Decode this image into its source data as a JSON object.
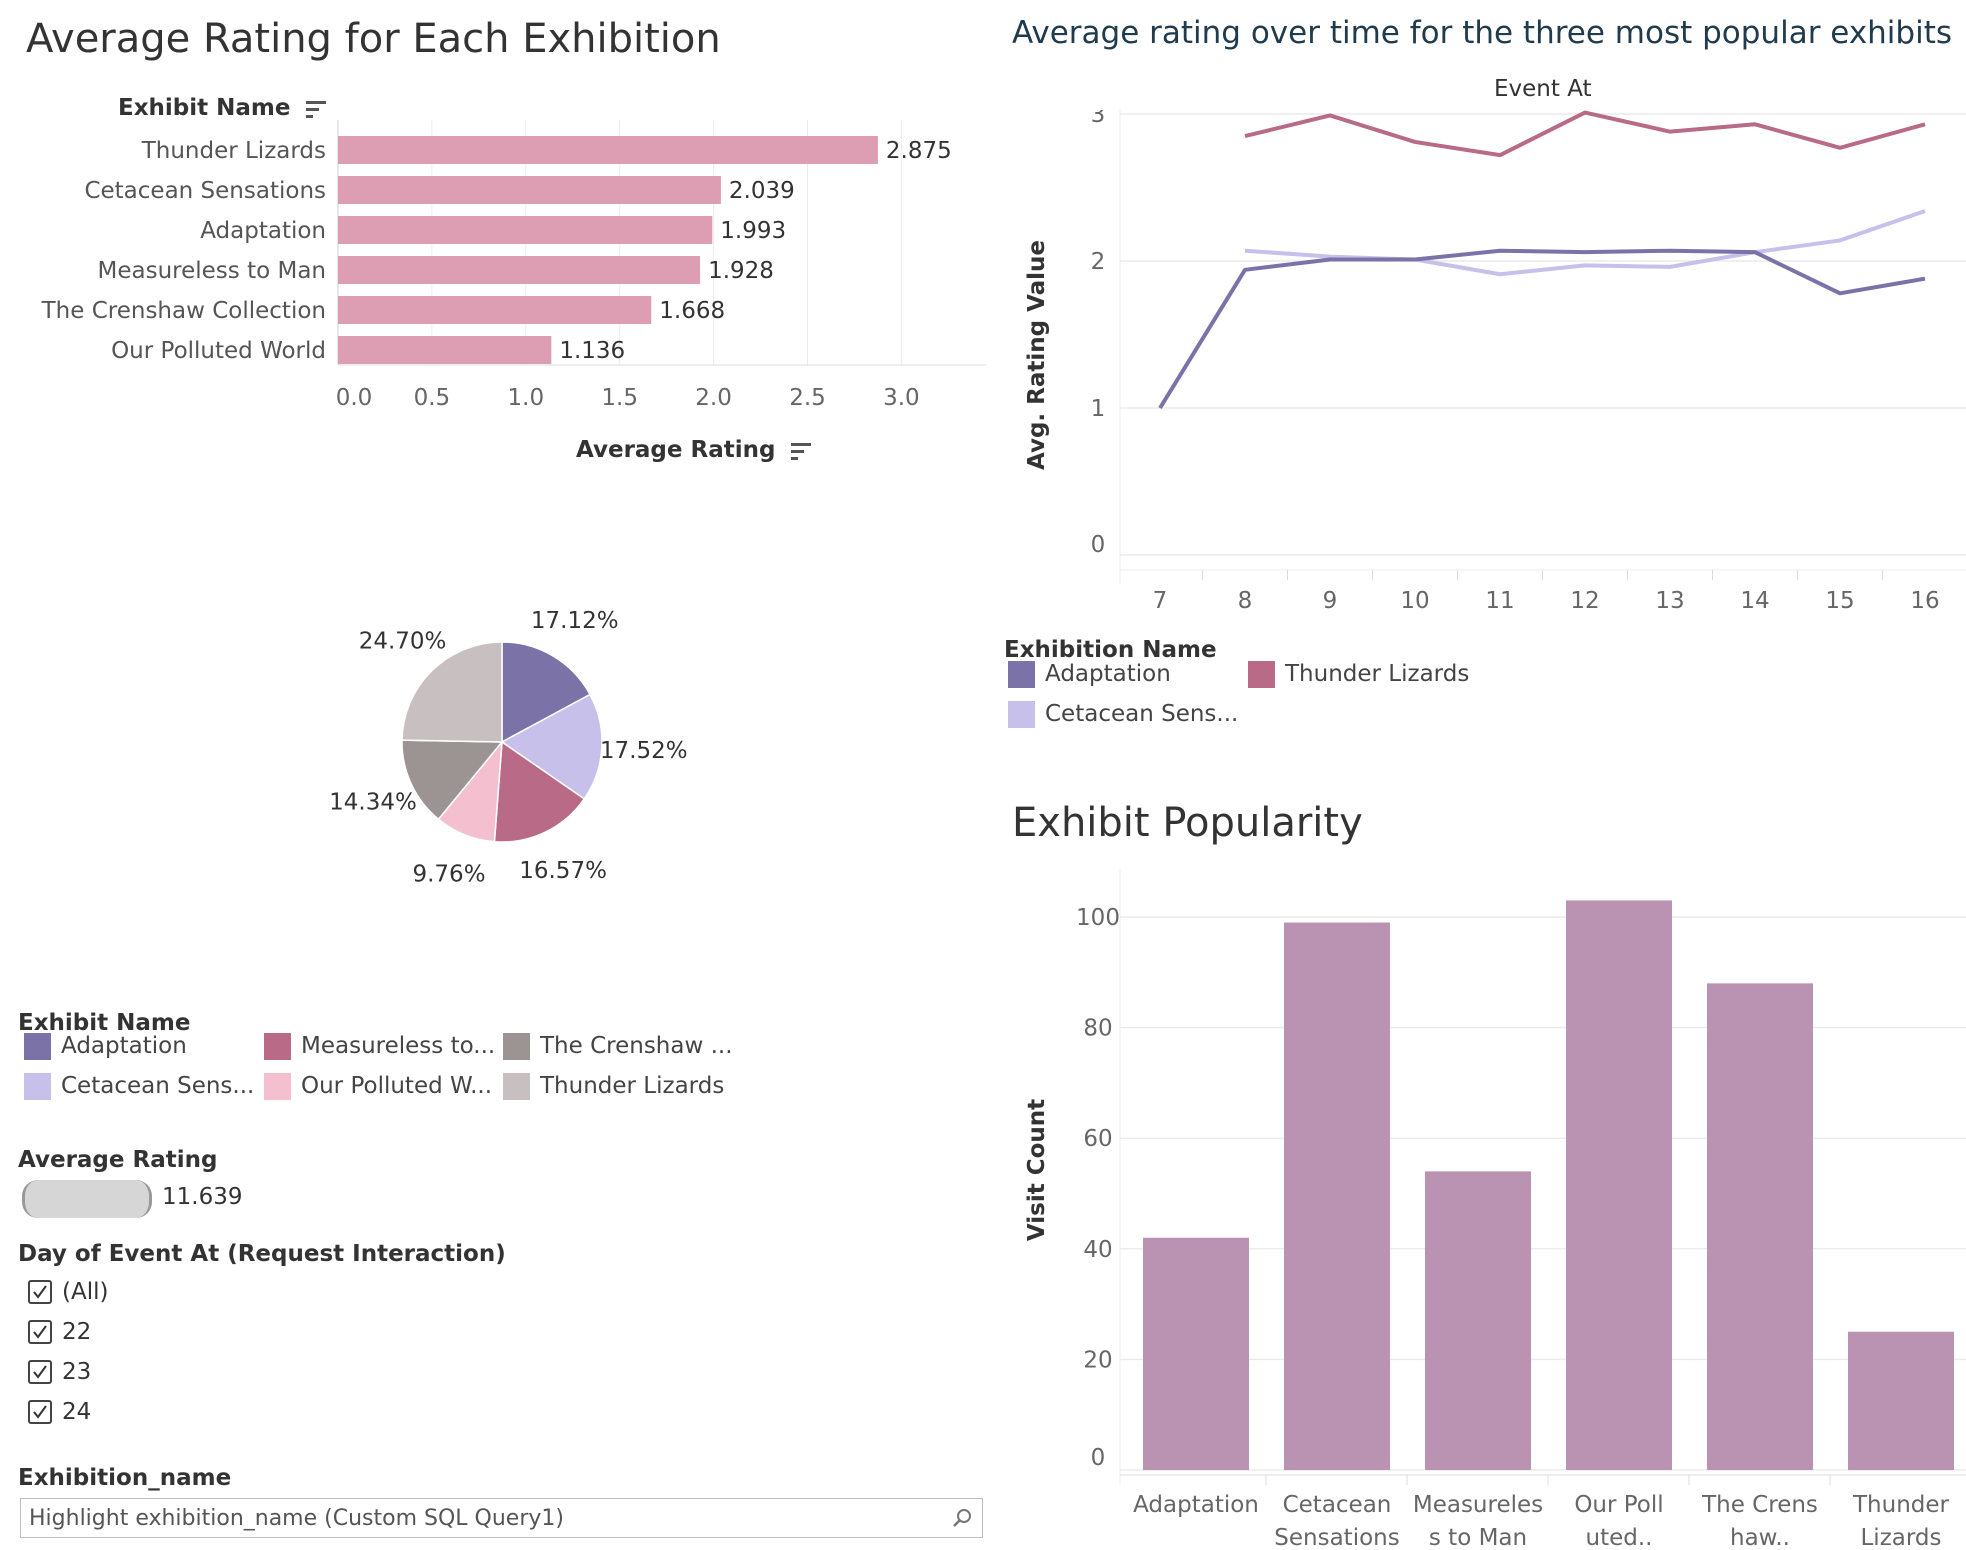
{
  "left": {
    "title": "Average Rating for Each Exhibition",
    "bar_header": "Exhibit Name",
    "bar_axis_label": "Average Rating",
    "pie_legend_title": "Exhibit Name",
    "pie_legend": [
      {
        "label": "Adaptation",
        "color": "#7b72a8"
      },
      {
        "label": "Measureless to...",
        "color": "#b86a86"
      },
      {
        "label": "The Crenshaw ...",
        "color": "#9c9493"
      },
      {
        "label": "Cetacean Sens...",
        "color": "#c6c0ea"
      },
      {
        "label": "Our Polluted W...",
        "color": "#f4c0d0"
      },
      {
        "label": "Thunder Lizards",
        "color": "#c7bfc0"
      }
    ],
    "size_legend_title": "Average Rating",
    "size_legend_value": "11.639",
    "day_filter_title": "Day of Event At (Request Interaction)",
    "day_filter_options": [
      "(All)",
      "22",
      "23",
      "24"
    ],
    "exhibition_filter_title": "Exhibition_name",
    "exhibition_filter_value": "Highlight exhibition_name (Custom SQL Query1)"
  },
  "right": {
    "line_title": "Average rating over time for the three most popular exhibits",
    "line_top_label": "Event At",
    "line_ylabel": "Avg. Rating Value",
    "line_legend_title": "Exhibition Name",
    "line_legend": [
      {
        "label": "Adaptation",
        "color": "#7b72a8"
      },
      {
        "label": "Thunder Lizards",
        "color": "#b86a86"
      },
      {
        "label": "Cetacean Sens...",
        "color": "#c6c0ea"
      }
    ],
    "bar_title": "Exhibit Popularity",
    "bar_ylabel": "Visit Count"
  },
  "chart_data": [
    {
      "type": "bar",
      "orientation": "horizontal",
      "title": "Average Rating for Each Exhibition",
      "xlabel": "Average Rating",
      "ylabel": "Exhibit Name",
      "categories": [
        "Thunder Lizards",
        "Cetacean Sensations",
        "Adaptation",
        "Measureless to Man",
        "The Crenshaw Collection",
        "Our Polluted World"
      ],
      "values": [
        2.875,
        2.039,
        1.993,
        1.928,
        1.668,
        1.136
      ],
      "value_labels": [
        "2.875",
        "2.039",
        "1.993",
        "1.928",
        "1.668",
        "1.136"
      ],
      "xlim": [
        0,
        3.45
      ],
      "xticks": [
        "0.0",
        "0.5",
        "1.0",
        "1.5",
        "2.0",
        "2.5",
        "3.0"
      ],
      "color": "#dd9db2"
    },
    {
      "type": "pie",
      "slices": [
        {
          "name": "Adaptation",
          "value": 17.12,
          "label": "17.12%",
          "color": "#7b72a8"
        },
        {
          "name": "Cetacean Sensations",
          "value": 17.52,
          "label": "17.52%",
          "color": "#c6c0ea"
        },
        {
          "name": "Measureless to Man",
          "value": 16.57,
          "label": "16.57%",
          "color": "#b86a86"
        },
        {
          "name": "Our Polluted World",
          "value": 9.76,
          "label": "9.76%",
          "color": "#f4c0d0"
        },
        {
          "name": "The Crenshaw Collection",
          "value": 14.34,
          "label": "14.34%",
          "color": "#9c9493"
        },
        {
          "name": "Thunder Lizards",
          "value": 24.7,
          "label": "24.70%",
          "color": "#c7bfc0"
        }
      ]
    },
    {
      "type": "line",
      "title": "Average rating over time for the three most popular exhibits",
      "xlabel": "Event At",
      "ylabel": "Avg. Rating Value",
      "x": [
        7,
        8,
        9,
        10,
        11,
        12,
        13,
        14,
        15,
        16
      ],
      "ylim": [
        0,
        3.2
      ],
      "yticks": [
        0,
        1,
        2,
        3
      ],
      "grid": true,
      "series": [
        {
          "name": "Thunder Lizards",
          "color": "#b86a86",
          "values": [
            null,
            2.85,
            2.99,
            2.81,
            2.72,
            3.01,
            2.88,
            2.93,
            2.77,
            2.93
          ]
        },
        {
          "name": "Cetacean Sensations",
          "color": "#c6c0ea",
          "values": [
            null,
            2.07,
            2.03,
            2.01,
            1.91,
            1.97,
            1.96,
            2.06,
            2.14,
            2.34
          ]
        },
        {
          "name": "Adaptation",
          "color": "#7b72a8",
          "values": [
            1.0,
            1.94,
            2.01,
            2.01,
            2.07,
            2.06,
            2.07,
            2.06,
            1.78,
            1.88
          ]
        }
      ]
    },
    {
      "type": "bar",
      "title": "Exhibit Popularity",
      "ylabel": "Visit Count",
      "categories": [
        "Adaptation",
        "Cetacean Sensations",
        "Measureless to Man",
        "Our Polluted World",
        "The Crenshaw Collection",
        "Thunder Lizards"
      ],
      "category_labels": [
        [
          "Adaptation",
          ""
        ],
        [
          "Cetacean",
          "Sensations"
        ],
        [
          "Measureles",
          "s to Man"
        ],
        [
          "Our Poll",
          "uted.."
        ],
        [
          "The Crens",
          "haw.."
        ],
        [
          "Thunder",
          "Lizards"
        ]
      ],
      "values": [
        42,
        99,
        54,
        103,
        88,
        25
      ],
      "ylim": [
        0,
        106
      ],
      "yticks": [
        0,
        20,
        40,
        60,
        80,
        100
      ],
      "color": "#bb93b2"
    }
  ]
}
